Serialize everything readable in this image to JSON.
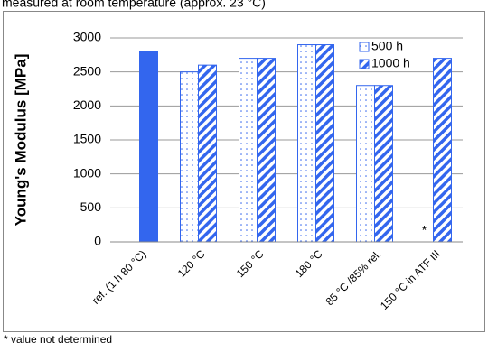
{
  "chart_data": {
    "type": "bar",
    "subtitle": "measured at room temperature (approx. 23 °C)",
    "y_label": "Young's Modulus [MPa]",
    "categories": [
      "ref. (1 h 80 °C)",
      "120 °C",
      "150 °C",
      "180 °C",
      "85 °C /85% rel.",
      "150 °C in ATF III"
    ],
    "series": [
      {
        "color": "#3366ee",
        "pattern": "solid",
        "values": [
          2800,
          null,
          null,
          null,
          null,
          null
        ]
      },
      {
        "name": "500 h",
        "color": "#3366ee",
        "pattern": "dots",
        "values": [
          null,
          2500,
          2700,
          2900,
          2300,
          null
        ]
      },
      {
        "name": "1000 h",
        "color": "#3366ee",
        "pattern": "stripes",
        "values": [
          null,
          2600,
          2700,
          2900,
          2300,
          2700
        ]
      }
    ],
    "annotation": "*",
    "footnote": "* value not determined",
    "ylim": [
      0,
      3000
    ],
    "yticks": [
      0,
      500,
      1000,
      1500,
      2000,
      2500,
      3000
    ],
    "grid": true,
    "legend": "top-right"
  }
}
